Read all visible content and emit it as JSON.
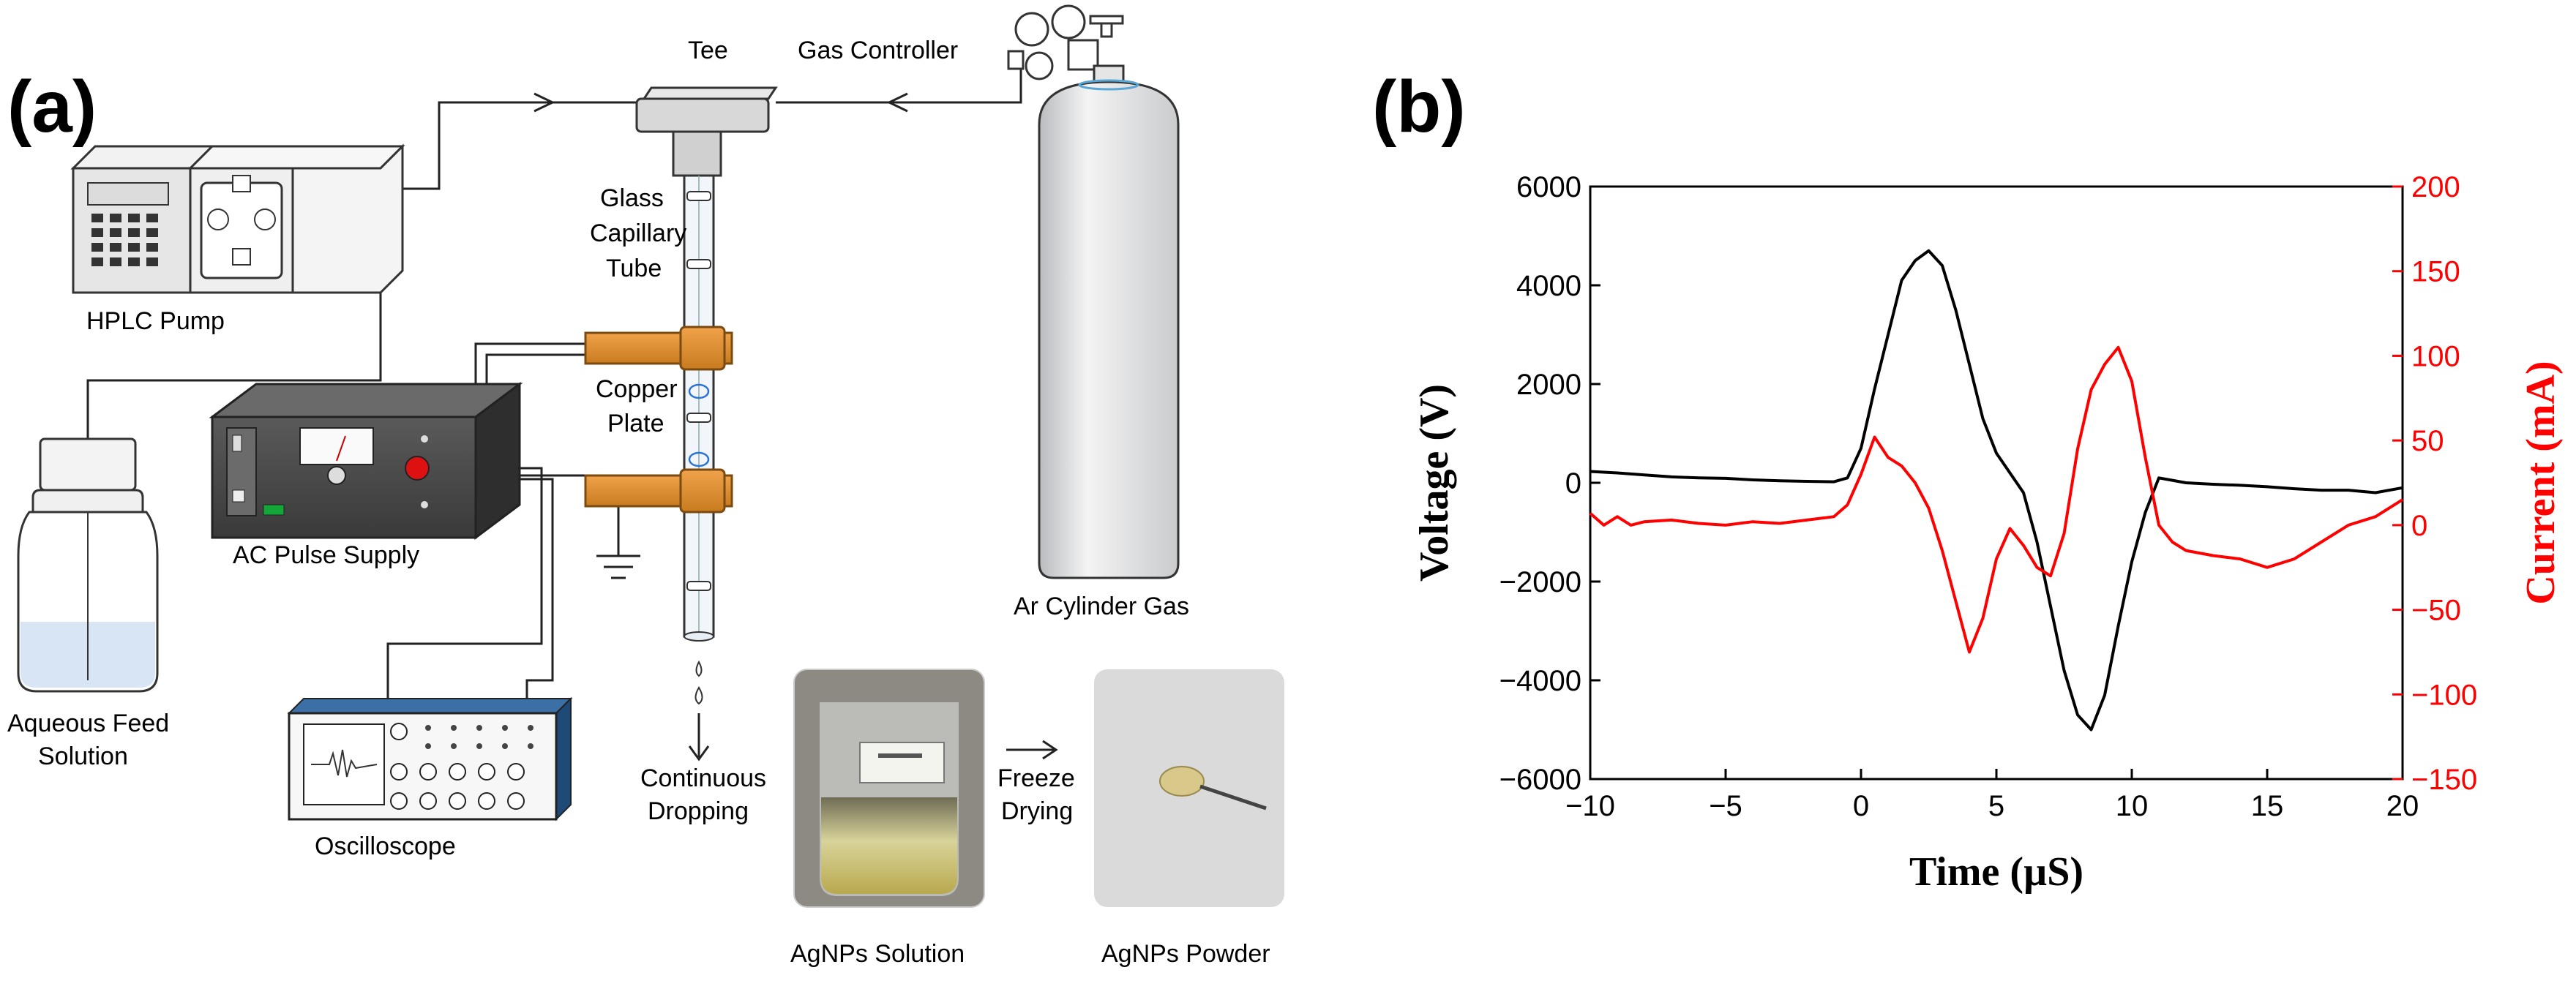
{
  "panel_a": {
    "label": "(a)",
    "labels": {
      "tee": "Tee",
      "gas_controller": "Gas Controller",
      "hplc_pump": "HPLC Pump",
      "glass_capillary_1": "Glass",
      "glass_capillary_2": "Capillary",
      "glass_capillary_3": "Tube",
      "copper_plate_1": "Copper",
      "copper_plate_2": "Plate",
      "ac_pulse_supply": "AC Pulse Supply",
      "ar_cylinder_gas": "Ar Cylinder Gas",
      "aqueous_feed_1": "Aqueous Feed",
      "aqueous_feed_2": "Solution",
      "oscilloscope": "Oscilloscope",
      "continuous_dropping_1": "Continuous",
      "continuous_dropping_2": "Dropping",
      "freeze_drying_1": "Freeze",
      "freeze_drying_2": "Drying",
      "agnps_solution": "AgNPs Solution",
      "agnps_powder": "AgNPs Powder"
    }
  },
  "panel_b": {
    "label": "(b)"
  },
  "chart_data": {
    "type": "line",
    "title": "",
    "xlabel": "Time (µS)",
    "ylabel": "Voltage (V)",
    "y2label": "Current (mA)",
    "xlim": [
      -10,
      20
    ],
    "ylim": [
      -6000,
      6000
    ],
    "y2lim": [
      -150,
      200
    ],
    "x_ticks": [
      -10,
      -5,
      0,
      5,
      10,
      15,
      20
    ],
    "x_tick_labels": [
      "−10",
      "−5",
      "0",
      "5",
      "10",
      "15",
      "20"
    ],
    "y_ticks": [
      -6000,
      -4000,
      -2000,
      0,
      2000,
      4000,
      6000
    ],
    "y_tick_labels": [
      "−6000",
      "−4000",
      "−2000",
      "0",
      "2000",
      "4000",
      "6000"
    ],
    "y2_ticks": [
      -150,
      -100,
      -50,
      0,
      50,
      100,
      150,
      200
    ],
    "y2_tick_labels": [
      "−150",
      "−100",
      "−50",
      "0",
      "50",
      "100",
      "150",
      "200"
    ],
    "colors": {
      "voltage": "#000000",
      "current": "#ff0000",
      "axis": "#000000"
    },
    "series": [
      {
        "name": "Voltage",
        "axis": "left",
        "x": [
          -10,
          -9,
          -8,
          -7,
          -6,
          -5,
          -4,
          -3,
          -2,
          -1,
          -0.5,
          0,
          0.5,
          1,
          1.5,
          2,
          2.5,
          3,
          3.5,
          4,
          4.5,
          5,
          5.5,
          6,
          6.5,
          7,
          7.5,
          8,
          8.5,
          9,
          9.5,
          10,
          10.5,
          11,
          11.5,
          12,
          13,
          14,
          15,
          16,
          17,
          18,
          19,
          20
        ],
        "values": [
          230,
          200,
          160,
          120,
          100,
          90,
          60,
          40,
          30,
          20,
          100,
          700,
          1900,
          3000,
          4100,
          4500,
          4700,
          4400,
          3500,
          2400,
          1300,
          600,
          200,
          -200,
          -1200,
          -2500,
          -3800,
          -4700,
          -5000,
          -4300,
          -2900,
          -1600,
          -600,
          100,
          50,
          0,
          -30,
          -50,
          -80,
          -120,
          -150,
          -150,
          -200,
          -100
        ]
      },
      {
        "name": "Current",
        "axis": "right",
        "x": [
          -10,
          -9.5,
          -9,
          -8.5,
          -8,
          -7,
          -6,
          -5,
          -4,
          -3,
          -2,
          -1,
          -0.5,
          0,
          0.5,
          1,
          1.5,
          2,
          2.5,
          3,
          3.5,
          4,
          4.5,
          5,
          5.5,
          6,
          6.5,
          7,
          7.5,
          8,
          8.5,
          9,
          9.5,
          10,
          10.5,
          11,
          11.5,
          12,
          13,
          14,
          15,
          16,
          17,
          18,
          19,
          20
        ],
        "values": [
          7,
          0,
          5,
          0,
          2,
          3,
          1,
          0,
          2,
          1,
          3,
          5,
          12,
          30,
          52,
          40,
          35,
          25,
          10,
          -15,
          -45,
          -75,
          -55,
          -20,
          -2,
          -12,
          -25,
          -30,
          -5,
          45,
          80,
          95,
          105,
          85,
          40,
          0,
          -10,
          -15,
          -18,
          -20,
          -25,
          -20,
          -10,
          0,
          5,
          15
        ]
      }
    ]
  }
}
